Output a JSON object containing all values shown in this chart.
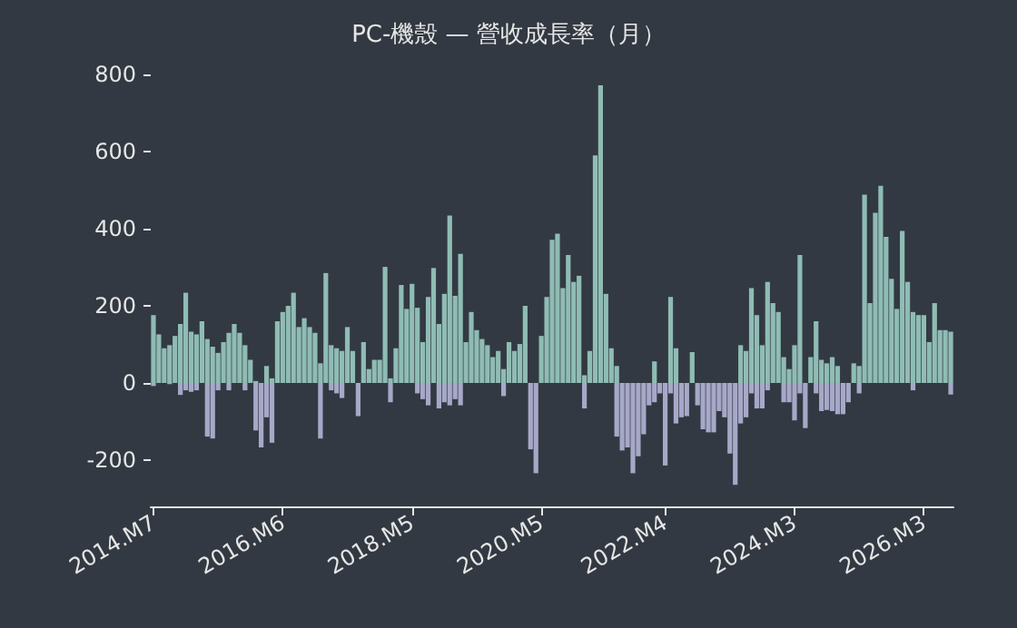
{
  "chart_data": {
    "type": "bar",
    "title": "PC-機殼 — 營收成長率（月）",
    "stacked": true,
    "grid": false,
    "categories": [
      "2014.M7",
      null,
      null,
      null,
      null,
      null,
      null,
      null,
      null,
      null,
      null,
      null,
      null,
      null,
      null,
      null,
      null,
      null,
      null,
      null,
      null,
      null,
      null,
      null,
      "2016.M6",
      null,
      null,
      null,
      null,
      null,
      null,
      null,
      null,
      null,
      null,
      null,
      null,
      null,
      null,
      null,
      null,
      null,
      null,
      null,
      null,
      null,
      null,
      null,
      "2018.M5",
      null,
      null,
      null,
      null,
      null,
      null,
      null,
      null,
      null,
      null,
      null,
      null,
      null,
      null,
      null,
      null,
      null,
      null,
      null,
      null,
      null,
      null,
      null,
      "2020.M5",
      null,
      null,
      null,
      null,
      null,
      null,
      null,
      null,
      null,
      null,
      null,
      null,
      null,
      null,
      null,
      null,
      null,
      null,
      null,
      null,
      null,
      null,
      "2022.M4",
      null,
      null,
      null,
      null,
      null,
      null,
      null,
      null,
      null,
      null,
      null,
      null,
      null,
      null,
      null,
      null,
      null,
      null,
      null,
      null,
      null,
      null,
      null,
      "2024.M3",
      null,
      null,
      null,
      null,
      null,
      null,
      null,
      null,
      null,
      null,
      null,
      null,
      null,
      null,
      null,
      null,
      null,
      null,
      null,
      null,
      null,
      null,
      null,
      "2026.M3",
      null,
      null,
      null,
      null,
      null
    ],
    "ylim": [
      -320,
      800
    ],
    "yticks": [
      -200,
      0,
      200,
      400,
      600,
      800
    ],
    "series": [
      {
        "color": "#8fbcb4",
        "values": [
          176,
          126,
          90,
          98,
          122,
          153,
          234,
          133,
          126,
          160,
          114,
          94,
          78,
          106,
          130,
          153,
          130,
          98,
          60,
          5,
          0,
          44,
          12,
          160,
          184,
          200,
          234,
          145,
          168,
          145,
          130,
          51,
          285,
          98,
          90,
          83,
          145,
          83,
          0,
          106,
          36,
          60,
          60,
          301,
          12,
          90,
          254,
          192,
          257,
          195,
          106,
          223,
          298,
          153,
          231,
          434,
          226,
          335,
          106,
          184,
          137,
          114,
          98,
          67,
          83,
          36,
          106,
          83,
          101,
          200,
          0,
          0,
          122,
          223,
          371,
          387,
          246,
          332,
          262,
          278,
          20,
          83,
          590,
          772,
          231,
          90,
          44,
          0,
          0,
          0,
          0,
          0,
          0,
          56,
          0,
          0,
          223,
          90,
          0,
          0,
          80,
          0,
          0,
          0,
          0,
          0,
          0,
          0,
          0,
          98,
          83,
          246,
          176,
          98,
          262,
          207,
          184,
          67,
          36,
          98,
          332,
          0,
          67,
          160,
          60,
          51,
          67,
          44,
          0,
          0,
          51,
          44,
          488,
          207,
          441,
          511,
          379,
          270,
          192,
          394,
          262,
          184,
          176,
          176,
          106,
          207,
          137,
          137,
          133
        ]
      },
      {
        "color": "#a7a8c8",
        "values": [
          -8,
          0,
          0,
          -3,
          0,
          -31,
          -19,
          -23,
          -19,
          0,
          -139,
          -144,
          -19,
          0,
          -19,
          0,
          0,
          -19,
          0,
          -123,
          -167,
          -89,
          -155,
          0,
          0,
          0,
          0,
          0,
          0,
          0,
          0,
          -144,
          0,
          -19,
          -27,
          -39,
          0,
          0,
          -86,
          0,
          0,
          0,
          0,
          0,
          -50,
          0,
          0,
          0,
          0,
          -27,
          -42,
          -58,
          0,
          -66,
          -50,
          -58,
          -42,
          -58,
          0,
          0,
          0,
          0,
          0,
          0,
          0,
          -34,
          0,
          0,
          0,
          0,
          -172,
          -234,
          0,
          0,
          0,
          0,
          0,
          0,
          0,
          0,
          -66,
          0,
          0,
          0,
          0,
          0,
          -139,
          -175,
          -167,
          -234,
          -190,
          -133,
          -58,
          -50,
          -27,
          -214,
          -27,
          -105,
          -89,
          -86,
          0,
          -58,
          -120,
          -128,
          -128,
          -73,
          -89,
          -183,
          -264,
          -105,
          -89,
          -27,
          -66,
          -66,
          -19,
          0,
          0,
          -50,
          -50,
          -97,
          -27,
          -117,
          0,
          -27,
          -73,
          -70,
          -73,
          -81,
          -81,
          -50,
          0,
          -27,
          0,
          0,
          0,
          0,
          0,
          0,
          0,
          0,
          0,
          -19,
          0,
          0,
          0,
          0,
          0,
          0,
          -30
        ]
      }
    ]
  }
}
